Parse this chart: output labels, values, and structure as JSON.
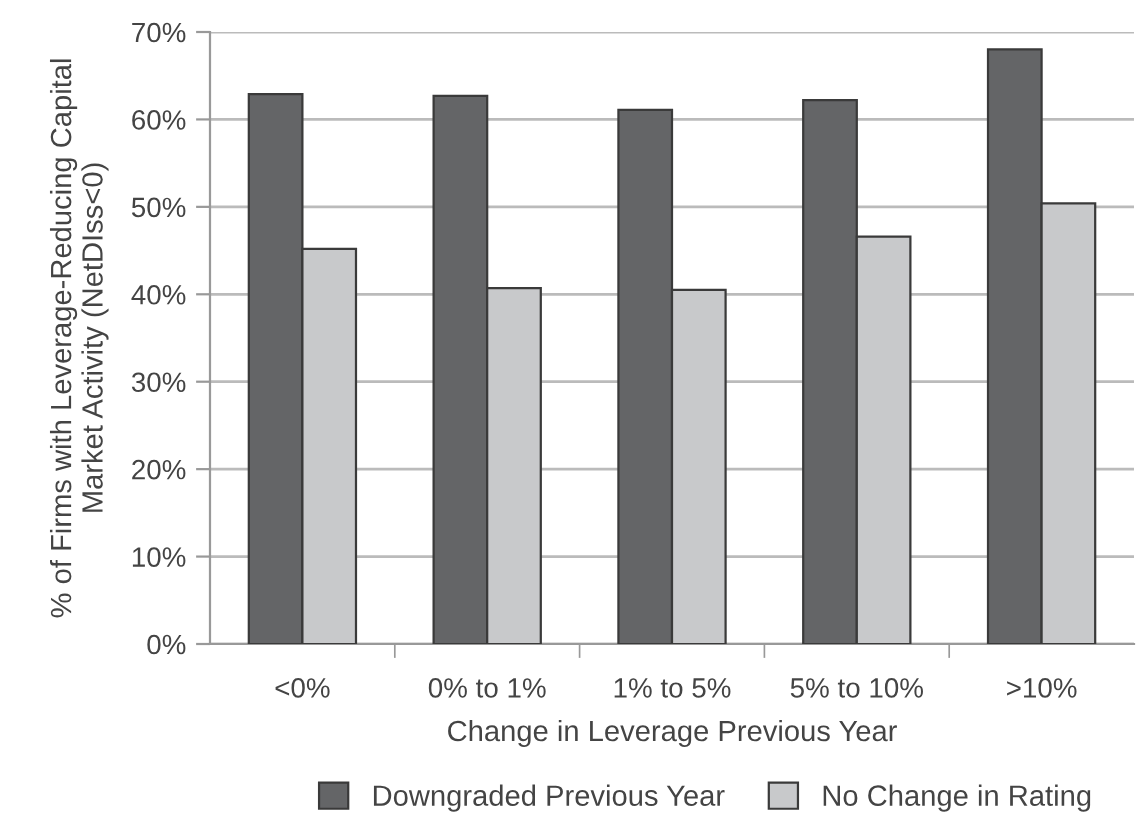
{
  "chart_data": {
    "type": "bar",
    "xlabel": "Change in Leverage Previous Year",
    "ylabel": "% of Firms with Leverage-Reducing Capital\nMarket Activity (NetDIss<0)",
    "categories": [
      "<0%",
      "0% to 1%",
      "1% to 5%",
      "5% to 10%",
      ">10%"
    ],
    "series": [
      {
        "name": "Downgraded Previous Year",
        "color": "#646567",
        "values": [
          62.9,
          62.7,
          61.1,
          62.2,
          68.0
        ]
      },
      {
        "name": "No Change in Rating",
        "color": "#c8c9cb",
        "values": [
          45.2,
          40.7,
          40.5,
          46.6,
          50.4
        ]
      }
    ],
    "ylim": [
      0,
      70
    ],
    "yticks": [
      {
        "value": 0,
        "label": "0%"
      },
      {
        "value": 10,
        "label": "10%"
      },
      {
        "value": 20,
        "label": "20%"
      },
      {
        "value": 30,
        "label": "30%"
      },
      {
        "value": 40,
        "label": "40%"
      },
      {
        "value": 50,
        "label": "50%"
      },
      {
        "value": 60,
        "label": "60%"
      },
      {
        "value": 70,
        "label": "70%"
      }
    ],
    "grid": "y",
    "legend": "bottom"
  }
}
